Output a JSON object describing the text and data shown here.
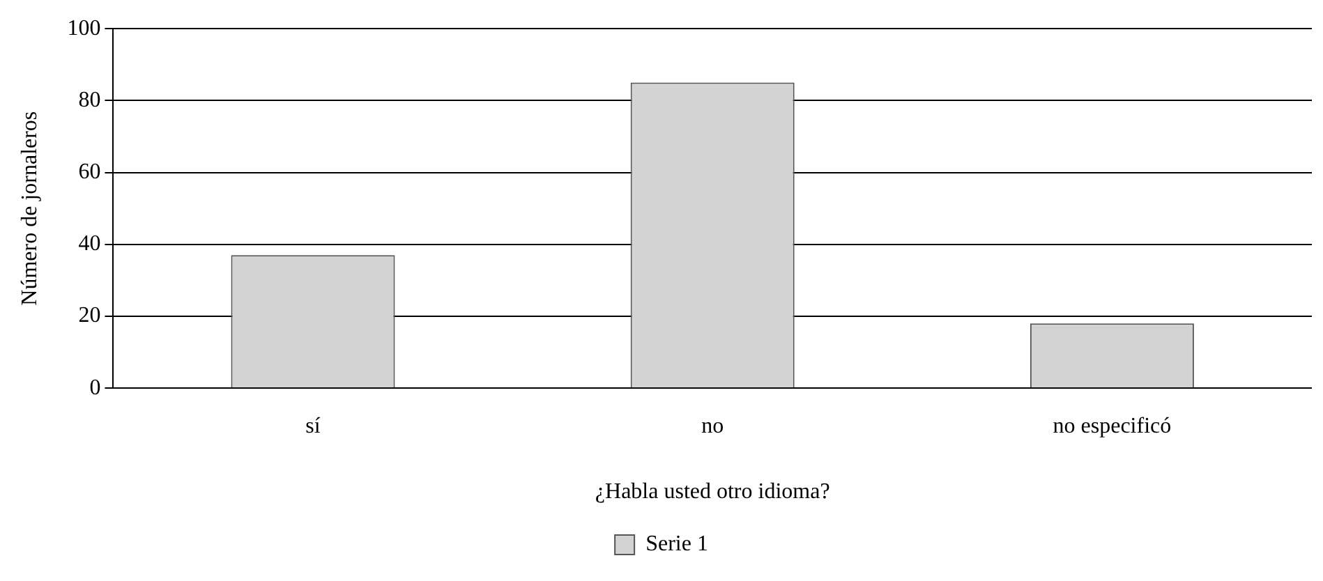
{
  "chart_data": {
    "type": "bar",
    "xlabel": "¿Habla usted otro idioma?",
    "ylabel": "Número de jornaleros",
    "categories": [
      "sí",
      "no",
      "no especificó"
    ],
    "series": [
      {
        "name": "Serie 1",
        "color": "#d3d3d3",
        "values": [
          37,
          85,
          18
        ]
      }
    ],
    "ylim": [
      0,
      100
    ],
    "yticks": [
      0,
      20,
      40,
      60,
      80,
      100
    ],
    "grid": "y",
    "legend": "bottom"
  }
}
